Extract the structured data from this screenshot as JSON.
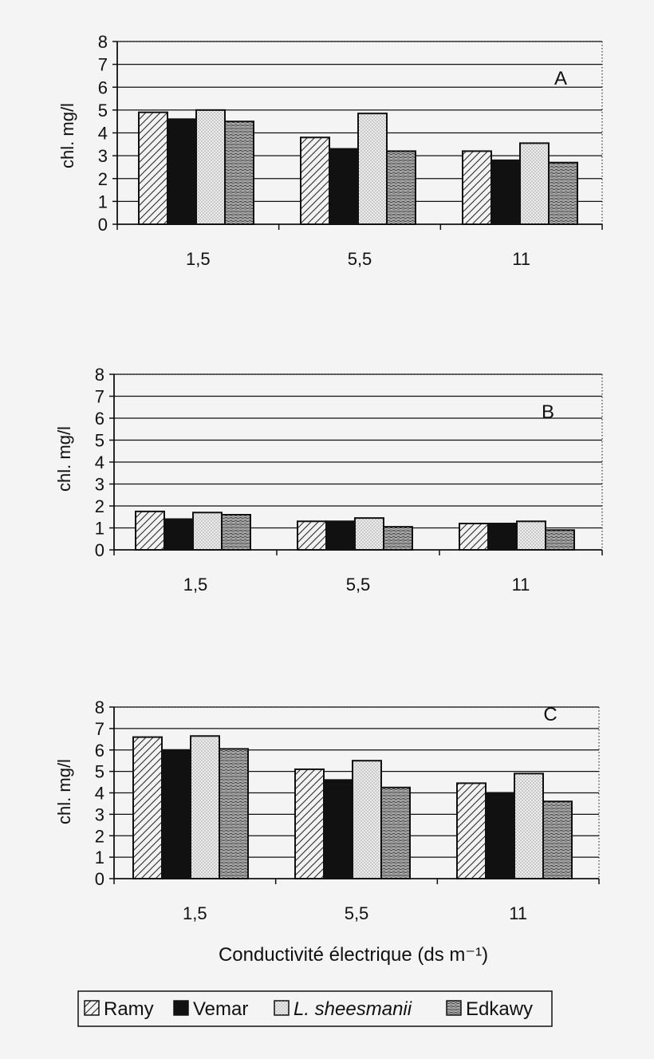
{
  "chart_data": [
    {
      "type": "bar",
      "panel_label": "A",
      "ylabel": "chl. mg/l",
      "ylim": [
        0,
        8
      ],
      "yticks": [
        "0",
        "1",
        "2",
        "3",
        "4",
        "5",
        "6",
        "7",
        "8"
      ],
      "categories": [
        "1,5",
        "5,5",
        "11"
      ],
      "grid": true,
      "series": [
        {
          "name": "Ramy",
          "values": [
            4.9,
            3.8,
            3.2
          ]
        },
        {
          "name": "Vemar",
          "values": [
            4.6,
            3.3,
            2.8
          ]
        },
        {
          "name": "L. sheesmanii",
          "values": [
            5.0,
            4.85,
            3.55
          ]
        },
        {
          "name": "Edkawy",
          "values": [
            4.5,
            3.2,
            2.7
          ]
        }
      ]
    },
    {
      "type": "bar",
      "panel_label": "B",
      "ylabel": "chl. mg/l",
      "ylim": [
        0,
        8
      ],
      "yticks": [
        "0",
        "1",
        "2",
        "3",
        "4",
        "5",
        "6",
        "7",
        "8"
      ],
      "categories": [
        "1,5",
        "5,5",
        "11"
      ],
      "grid": true,
      "series": [
        {
          "name": "Ramy",
          "values": [
            1.75,
            1.3,
            1.2
          ]
        },
        {
          "name": "Vemar",
          "values": [
            1.4,
            1.3,
            1.2
          ]
        },
        {
          "name": "L. sheesmanii",
          "values": [
            1.7,
            1.45,
            1.3
          ]
        },
        {
          "name": "Edkawy",
          "values": [
            1.6,
            1.05,
            0.9
          ]
        }
      ]
    },
    {
      "type": "bar",
      "panel_label": "C",
      "ylabel": "chl. mg/l",
      "xlabel": "Conductivité électrique (ds m⁻¹)",
      "ylim": [
        0,
        8
      ],
      "yticks": [
        "0",
        "1",
        "2",
        "3",
        "4",
        "5",
        "6",
        "7",
        "8"
      ],
      "categories": [
        "1,5",
        "5,5",
        "11"
      ],
      "grid": true,
      "series": [
        {
          "name": "Ramy",
          "values": [
            6.6,
            5.1,
            4.45
          ]
        },
        {
          "name": "Vemar",
          "values": [
            6.0,
            4.6,
            4.0
          ]
        },
        {
          "name": "L. sheesmanii",
          "values": [
            6.65,
            5.5,
            4.9
          ]
        },
        {
          "name": "Edkawy",
          "values": [
            6.05,
            4.25,
            3.6
          ]
        }
      ]
    }
  ],
  "legend": {
    "position": "bottom",
    "items": [
      {
        "label": "Ramy",
        "pattern": "hatch-diagonal"
      },
      {
        "label": "Vemar",
        "pattern": "solid-black"
      },
      {
        "label": "L. sheesmanii",
        "pattern": "dots"
      },
      {
        "label": "Edkawy",
        "pattern": "wavy-lines"
      }
    ]
  },
  "colors": {
    "background": "#f4f4f4",
    "ink": "#111111",
    "vemar_fill": "#111111"
  }
}
